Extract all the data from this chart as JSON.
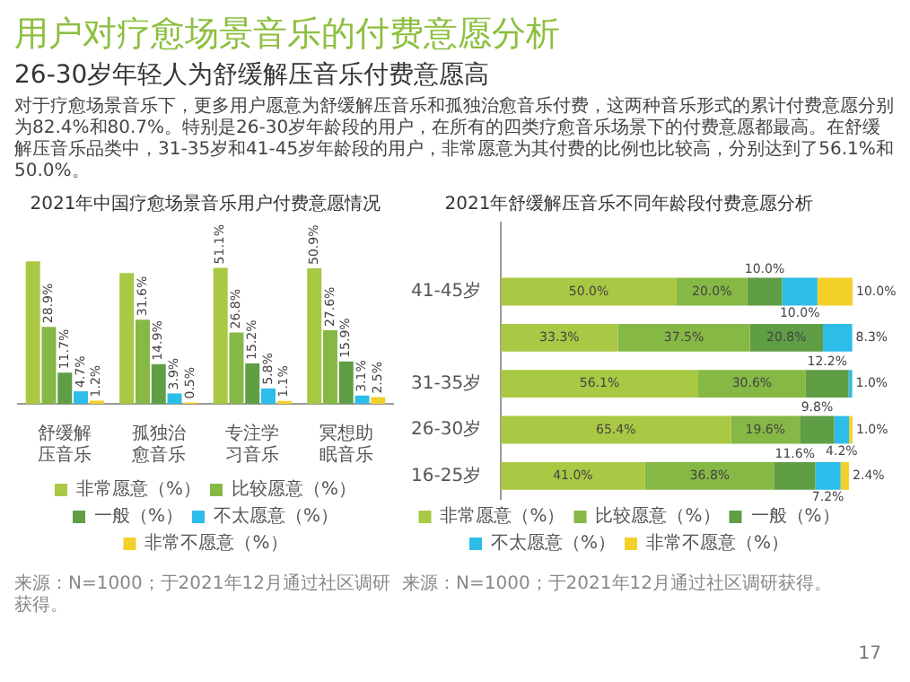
{
  "chart_data": [
    {
      "type": "other",
      "title": "用户对疗愈场景音乐的付费意愿分析",
      "subtitle": "26-30岁年轻人为舒缓解压音乐付费意愿高",
      "annotations": [
        "对于疗愈场景音乐下，更多用户愿意为舒缓解压音乐和孤独治愈音乐付费，这两种音乐形式的累计付费意愿分别为82.4%和80.7%。特别是26-30岁年龄段的用户，在所有的四类疗愈音乐场景下的付费意愿都最高。在舒缓解压音乐品类中，31-35岁和41-45岁年龄段的用户，非常愿意为其付费的比例也比较高，分别达到了56.1%和50.0%。",
        "17"
      ]
    },
    {
      "type": "bar",
      "title": "2021年中国疗愈场景音乐用户付费意愿情况",
      "categories": [
        "舒缓解压音乐",
        "孤独治愈音乐",
        "专注学习音乐",
        "冥想助眠音乐"
      ],
      "tick_labels": "x",
      "legend": "bottom",
      "annotations": [
        "来源：N=1000；于2021年12月通过社区调研获得。"
      ],
      "series": [
        {
          "name": "非常愿意（%）",
          "color": "#a9c843",
          "values": [
            53.5,
            49.1,
            51.1,
            50.9
          ],
          "value_labels": [
            null,
            null,
            "51.1%",
            "50.9%"
          ]
        },
        {
          "name": "比较愿意（%）",
          "color": "#86b845",
          "values": [
            28.9,
            31.6,
            26.8,
            27.6
          ],
          "value_labels": [
            "28.9%",
            "31.6%",
            "26.8%",
            "27.6%"
          ]
        },
        {
          "name": "一般（%）",
          "color": "#5f9e45",
          "values": [
            11.7,
            14.9,
            15.2,
            15.9
          ],
          "value_labels": [
            "11.7%",
            "14.9%",
            "15.2%",
            "15.9%"
          ]
        },
        {
          "name": "不太愿意（%）",
          "color": "#2dbde9",
          "values": [
            4.7,
            3.9,
            5.8,
            3.1
          ],
          "value_labels": [
            "4.7%",
            "3.9%",
            "5.8%",
            "3.1%"
          ]
        },
        {
          "name": "非常不愿意（%）",
          "color": "#f4d02a",
          "values": [
            1.2,
            0.5,
            1.1,
            2.5
          ],
          "value_labels": [
            "1.2%",
            "0.5%",
            "1.1%",
            "2.5%"
          ]
        }
      ]
    },
    {
      "type": "bar",
      "orientation": "horizontal",
      "stacked": true,
      "title": "2021年舒缓解压音乐不同年龄段付费意愿分析",
      "categories": [
        null,
        "41-45岁",
        null,
        "31-35岁",
        "26-30岁",
        "16-25岁"
      ],
      "tick_labels": "y",
      "legend": "bottom",
      "annotations": [
        "来源：N=1000；于2021年12月通过社区调研获得。"
      ],
      "series": [
        {
          "name": "非常愿意（%）",
          "color": "#a9c843",
          "values": [
            null,
            50.0,
            33.3,
            56.1,
            65.4,
            41.0
          ],
          "value_labels": [
            null,
            "50.0%",
            "33.3%",
            "56.1%",
            "65.4%",
            "41.0%"
          ]
        },
        {
          "name": "比较愿意（%）",
          "color": "#86b845",
          "values": [
            null,
            20.0,
            37.5,
            30.6,
            19.6,
            36.8
          ],
          "value_labels": [
            null,
            "20.0%",
            "37.5%",
            "30.6%",
            "19.6%",
            "36.8%"
          ]
        },
        {
          "name": "一般（%）",
          "color": "#5f9e45",
          "values": [
            null,
            10.0,
            20.8,
            12.2,
            9.8,
            11.6
          ],
          "value_labels": [
            null,
            "10.0%",
            "20.8%",
            "12.2%",
            "9.8%",
            "11.6%"
          ]
        },
        {
          "name": "不太愿意（%）",
          "color": "#2dbde9",
          "values": [
            null,
            10.0,
            8.3,
            1.0,
            4.2,
            7.2
          ],
          "value_labels": [
            null,
            "10.0%",
            "8.3%",
            "1.0%",
            "4.2%",
            "7.2%"
          ]
        },
        {
          "name": "非常不愿意（%）",
          "color": "#f4d02a",
          "values": [
            null,
            10.0,
            null,
            null,
            1.0,
            2.4
          ],
          "value_labels": [
            null,
            "10.0%",
            null,
            null,
            "1.0%",
            "2.4%"
          ]
        }
      ]
    }
  ]
}
